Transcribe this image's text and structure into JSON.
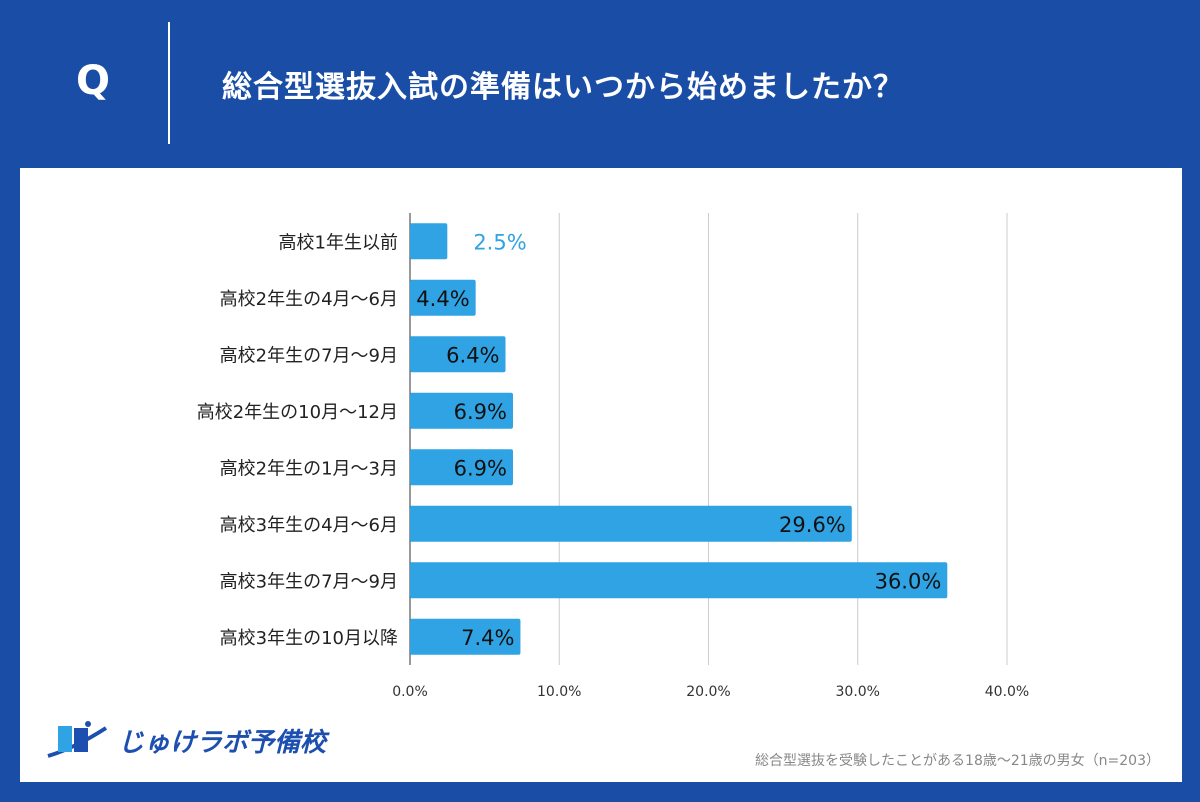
{
  "header": {
    "q_label": "Q",
    "title": "総合型選抜入試の準備はいつから始めましたか？"
  },
  "chart_data": {
    "type": "bar",
    "orientation": "horizontal",
    "categories": [
      "高校1年生以前",
      "高校2年生の4月～6月",
      "高校2年生の7月～9月",
      "高校2年生の10月～12月",
      "高校2年生の1月～3月",
      "高校3年生の4月～6月",
      "高校3年生の7月～9月",
      "高校3年生の10月以降"
    ],
    "values": [
      2.5,
      4.4,
      6.4,
      6.9,
      6.9,
      29.6,
      36.0,
      7.4
    ],
    "labels": [
      "2.5%",
      "4.4%",
      "6.4%",
      "6.9%",
      "6.9%",
      "29.6%",
      "36.0%",
      "7.4%"
    ],
    "xlim": [
      0,
      40
    ],
    "ticks": [
      "0.0%",
      "10.0%",
      "20.0%",
      "30.0%",
      "40.0%"
    ],
    "grid": true,
    "bar_color": "#2fa3e4"
  },
  "footer": {
    "logo_text": "じゅけラボ予備校",
    "note": "総合型選抜を受験したことがある18歳～21歳の男女（n=203）"
  }
}
